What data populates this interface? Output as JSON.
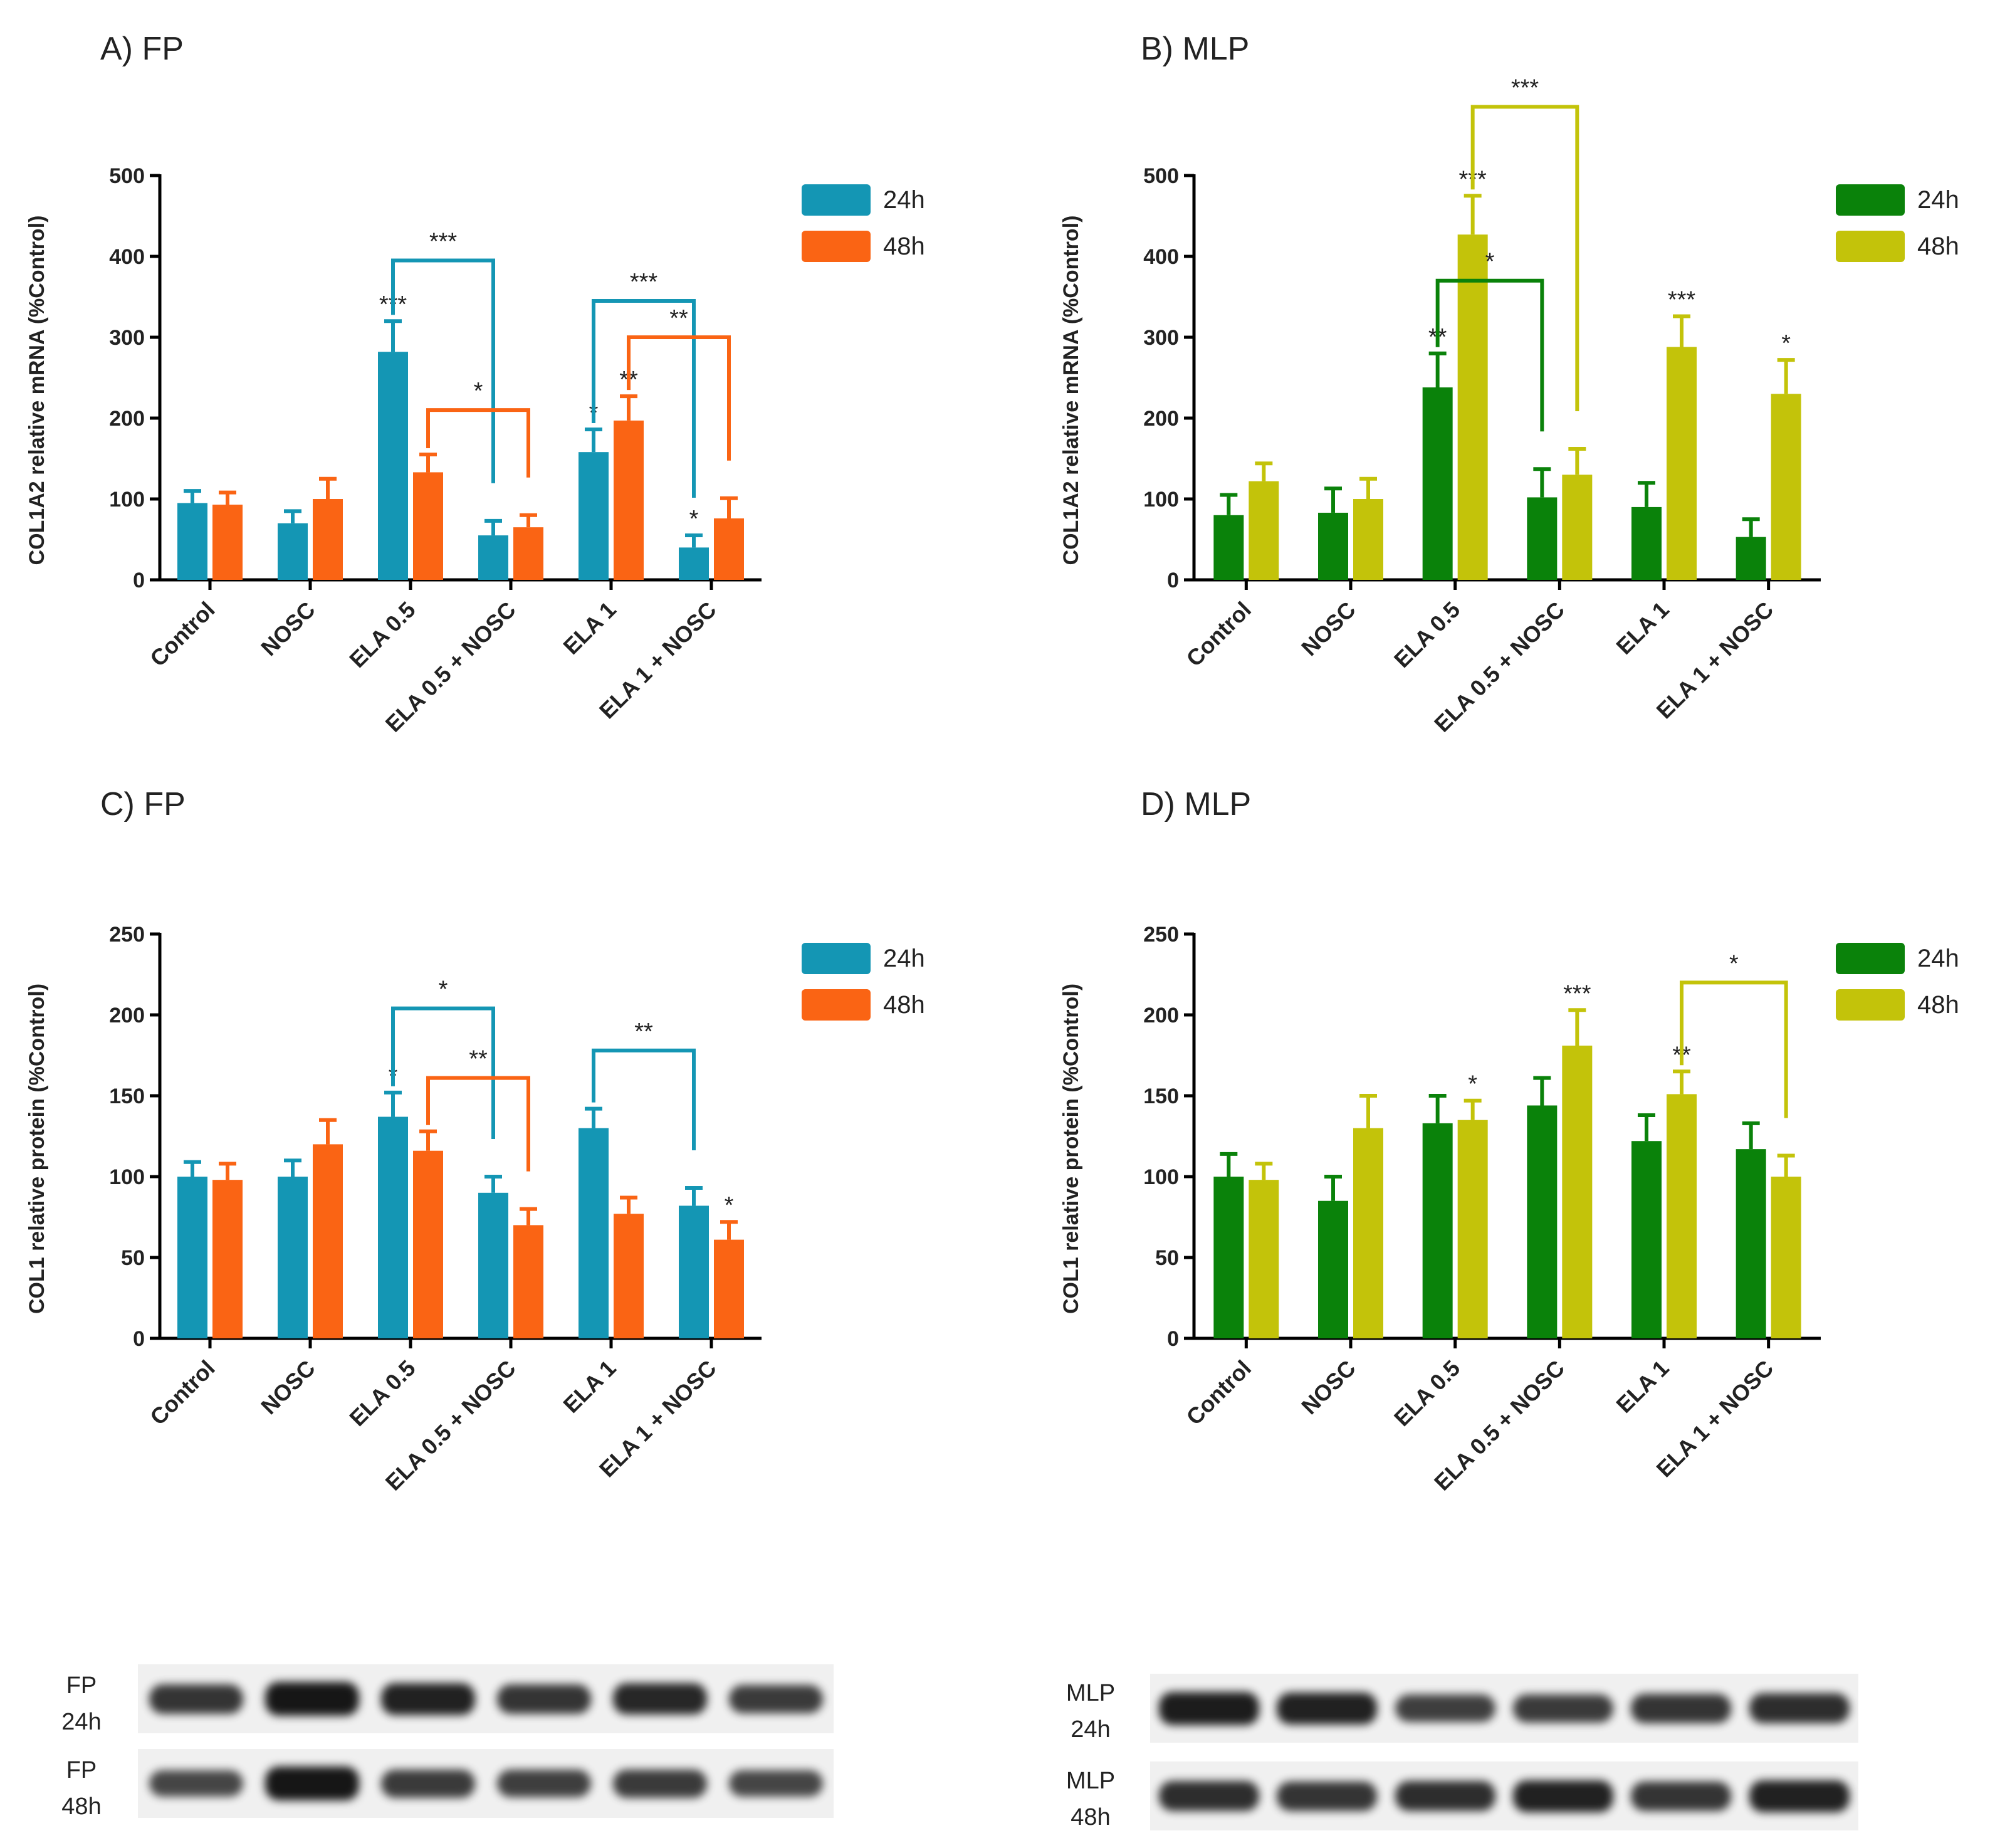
{
  "colors": {
    "fp_24h": "#1496b4",
    "fp_48h": "#fa6414",
    "mlp_24h": "#0a820a",
    "mlp_48h": "#c3c30a",
    "axis": "#000000"
  },
  "chart_data": [
    {
      "id": "A",
      "type": "bar",
      "title": "A) FP",
      "ylabel": "COL1A2 relative mRNA (%Control)",
      "ylim": [
        0,
        500
      ],
      "yticks": [
        0,
        100,
        200,
        300,
        400,
        500
      ],
      "categories": [
        "Control",
        "NOSC",
        "ELA 0.5",
        "ELA 0.5 + NOSC",
        "ELA 1",
        "ELA 1 + NOSC"
      ],
      "series": [
        {
          "name": "24h",
          "values": [
            95,
            70,
            282,
            55,
            158,
            40
          ],
          "errors": [
            15,
            15,
            38,
            18,
            28,
            15
          ],
          "sig": [
            "",
            "",
            "***",
            "",
            "*",
            "*"
          ]
        },
        {
          "name": "48h",
          "values": [
            93,
            100,
            133,
            65,
            197,
            76
          ],
          "errors": [
            15,
            25,
            22,
            15,
            30,
            25
          ],
          "sig": [
            "",
            "",
            "",
            "",
            "**",
            ""
          ]
        }
      ],
      "brackets": [
        {
          "series": 0,
          "from": 2,
          "to": 3,
          "y": 395,
          "label": "***"
        },
        {
          "series": 1,
          "from": 2,
          "to": 3,
          "y": 210,
          "label": "*"
        },
        {
          "series": 0,
          "from": 4,
          "to": 5,
          "y": 345,
          "label": "***"
        },
        {
          "series": 1,
          "from": 4,
          "to": 5,
          "y": 300,
          "label": "**"
        }
      ]
    },
    {
      "id": "B",
      "type": "bar",
      "title": "B) MLP",
      "ylabel": "COL1A2 relative mRNA (%Control)",
      "ylim": [
        0,
        500
      ],
      "yticks": [
        0,
        100,
        200,
        300,
        400,
        500
      ],
      "categories": [
        "Control",
        "NOSC",
        "ELA 0.5",
        "ELA 0.5 + NOSC",
        "ELA 1",
        "ELA 1 + NOSC"
      ],
      "series": [
        {
          "name": "24h",
          "values": [
            80,
            83,
            238,
            102,
            90,
            53
          ],
          "errors": [
            25,
            30,
            42,
            35,
            30,
            22
          ],
          "sig": [
            "",
            "",
            "**",
            "",
            "",
            ""
          ]
        },
        {
          "name": "48h",
          "values": [
            122,
            100,
            427,
            130,
            288,
            230
          ],
          "errors": [
            22,
            25,
            48,
            32,
            38,
            42
          ],
          "sig": [
            "",
            "",
            "***",
            "",
            "***",
            "*"
          ]
        }
      ],
      "brackets": [
        {
          "series": 0,
          "from": 2,
          "to": 3,
          "y": 370,
          "label": "*"
        },
        {
          "series": 1,
          "from": 2,
          "to": 3,
          "y": 585,
          "label": "***"
        }
      ]
    },
    {
      "id": "C",
      "type": "bar",
      "title": "C) FP",
      "ylabel": "COL1 relative protein (%Control)",
      "ylim": [
        0,
        250
      ],
      "yticks": [
        0,
        50,
        100,
        150,
        200,
        250
      ],
      "categories": [
        "Control",
        "NOSC",
        "ELA 0.5",
        "ELA 0.5 + NOSC",
        "ELA 1",
        "ELA 1 + NOSC"
      ],
      "series": [
        {
          "name": "24h",
          "values": [
            100,
            100,
            137,
            90,
            130,
            82
          ],
          "errors": [
            9,
            10,
            15,
            10,
            12,
            11
          ],
          "sig": [
            "",
            "",
            "*",
            "",
            "",
            ""
          ]
        },
        {
          "name": "48h",
          "values": [
            98,
            120,
            116,
            70,
            77,
            61
          ],
          "errors": [
            10,
            15,
            12,
            10,
            10,
            11
          ],
          "sig": [
            "",
            "",
            "",
            "",
            "",
            "*"
          ]
        }
      ],
      "brackets": [
        {
          "series": 0,
          "from": 2,
          "to": 3,
          "y": 204,
          "label": "*"
        },
        {
          "series": 1,
          "from": 2,
          "to": 3,
          "y": 161,
          "label": "**"
        },
        {
          "series": 0,
          "from": 4,
          "to": 5,
          "y": 178,
          "label": "**"
        }
      ]
    },
    {
      "id": "D",
      "type": "bar",
      "title": "D) MLP",
      "ylabel": "COL1 relative protein (%Control)",
      "ylim": [
        0,
        250
      ],
      "yticks": [
        0,
        50,
        100,
        150,
        200,
        250
      ],
      "categories": [
        "Control",
        "NOSC",
        "ELA 0.5",
        "ELA 0.5 + NOSC",
        "ELA 1",
        "ELA 1 + NOSC"
      ],
      "series": [
        {
          "name": "24h",
          "values": [
            100,
            85,
            133,
            144,
            122,
            117
          ],
          "errors": [
            14,
            15,
            17,
            17,
            16,
            16
          ],
          "sig": [
            "",
            "",
            "",
            "",
            "",
            ""
          ]
        },
        {
          "name": "48h",
          "values": [
            98,
            130,
            135,
            181,
            151,
            100
          ],
          "errors": [
            10,
            20,
            12,
            22,
            14,
            13
          ],
          "sig": [
            "",
            "",
            "*",
            "***",
            "**",
            ""
          ]
        }
      ],
      "brackets": [
        {
          "series": 1,
          "from": 4,
          "to": 5,
          "y": 220,
          "label": "*"
        }
      ]
    }
  ],
  "blots": [
    {
      "id": "fp",
      "labels": [
        {
          "line1": "FP",
          "line2": "24h"
        },
        {
          "line1": "FP",
          "line2": "48h"
        }
      ],
      "intensity": [
        [
          0.75,
          1.0,
          0.9,
          0.75,
          0.85,
          0.7
        ],
        [
          0.6,
          1.0,
          0.7,
          0.65,
          0.7,
          0.6
        ]
      ]
    },
    {
      "id": "mlp",
      "labels": [
        {
          "line1": "MLP",
          "line2": "24h"
        },
        {
          "line1": "MLP",
          "line2": "48h"
        }
      ],
      "intensity": [
        [
          0.95,
          0.9,
          0.65,
          0.7,
          0.75,
          0.8
        ],
        [
          0.8,
          0.75,
          0.8,
          0.9,
          0.75,
          0.9
        ]
      ]
    }
  ]
}
